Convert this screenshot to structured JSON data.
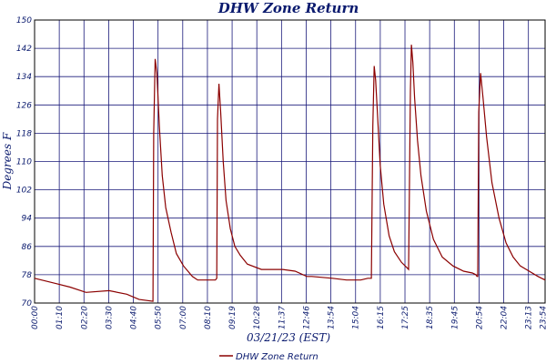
{
  "chart_data": {
    "type": "line",
    "title": "DHW Zone Return",
    "xlabel": "03/21/23 (EST)",
    "ylabel": "Degrees F",
    "ylim": [
      70,
      150
    ],
    "yticks": [
      70,
      78,
      86,
      94,
      102,
      110,
      118,
      126,
      134,
      142,
      150
    ],
    "xlim_minutes": [
      0,
      1440
    ],
    "xtick_labels": [
      "00:00",
      "01:10",
      "02:20",
      "03:30",
      "04:40",
      "05:50",
      "07:00",
      "08:10",
      "09:19",
      "10:28",
      "11:37",
      "12:46",
      "13:54",
      "15:04",
      "16:15",
      "17:25",
      "18:35",
      "19:45",
      "20:54",
      "22:04",
      "23:13",
      "23:54"
    ],
    "grid": true,
    "legend_position": "bottom-center",
    "series": [
      {
        "name": "DHW Zone Return",
        "color": "#8b0000",
        "x_minutes": [
          0,
          60,
          100,
          145,
          210,
          260,
          295,
          334,
          336,
          340,
          345,
          352,
          360,
          370,
          385,
          400,
          420,
          445,
          460,
          470,
          480,
          490,
          510,
          514,
          516,
          520,
          525,
          532,
          540,
          552,
          565,
          580,
          600,
          640,
          700,
          735,
          768,
          782,
          840,
          880,
          920,
          940,
          950,
          954,
          958,
          962,
          968,
          975,
          985,
          1000,
          1015,
          1035,
          1050,
          1055,
          1060,
          1063,
          1067,
          1072,
          1080,
          1090,
          1105,
          1125,
          1150,
          1180,
          1210,
          1235,
          1245,
          1248,
          1250,
          1253,
          1258,
          1265,
          1275,
          1290,
          1310,
          1330,
          1350,
          1370,
          1395,
          1420,
          1440
        ],
        "values": [
          77,
          75.5,
          74.5,
          73,
          73.5,
          72.5,
          71,
          70.5,
          118,
          139,
          135,
          120,
          106,
          97,
          90,
          84,
          80.5,
          77.5,
          76.5,
          76.5,
          76.5,
          76.5,
          76.5,
          77,
          122,
          132,
          124,
          110,
          99,
          91,
          86,
          83.5,
          81,
          79.5,
          79.5,
          79,
          77.5,
          77.5,
          77,
          76.5,
          76.5,
          77,
          77,
          120,
          137,
          133,
          122,
          109,
          98,
          89,
          84.5,
          81.5,
          80,
          79.5,
          130,
          143,
          138,
          128,
          116,
          106,
          96,
          88,
          83,
          80.5,
          79,
          78.5,
          78,
          77.5,
          77.5,
          124,
          135,
          128,
          117,
          104,
          94,
          87,
          83,
          80.5,
          79,
          77.5,
          76.5
        ]
      }
    ]
  }
}
